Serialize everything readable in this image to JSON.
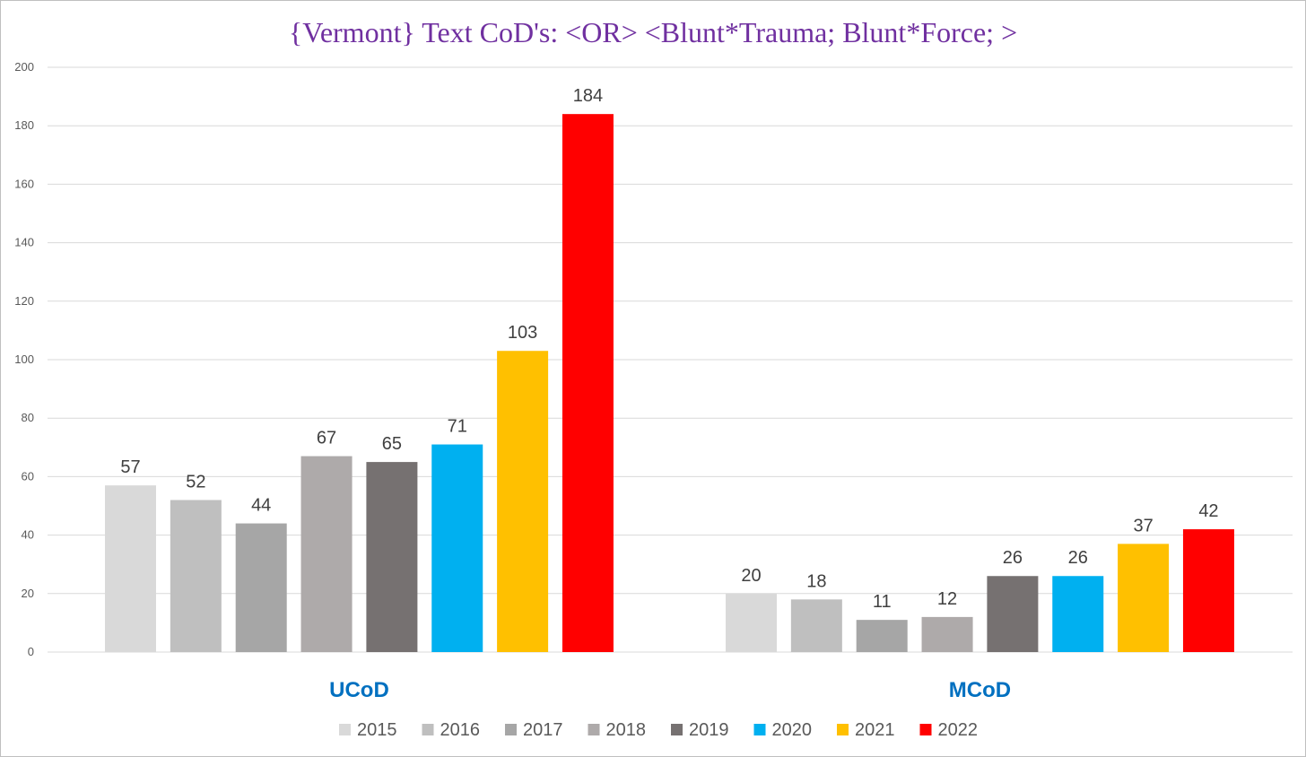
{
  "chart_data": {
    "type": "bar",
    "title": "{Vermont}   Text CoD's: <OR> <Blunt*Trauma; Blunt*Force; >",
    "xlabel": "",
    "ylabel": "",
    "ylim": [
      0,
      200
    ],
    "yticks": [
      0,
      20,
      40,
      60,
      80,
      100,
      120,
      140,
      160,
      180,
      200
    ],
    "grid": true,
    "legend_position": "bottom",
    "categories": [
      "UCoD",
      "MCoD"
    ],
    "series": [
      {
        "name": "2015",
        "color": "#d9d9d9",
        "values": [
          57,
          20
        ]
      },
      {
        "name": "2016",
        "color": "#bfbfbf",
        "values": [
          52,
          18
        ]
      },
      {
        "name": "2017",
        "color": "#a6a6a6",
        "values": [
          44,
          11
        ]
      },
      {
        "name": "2018",
        "color": "#aeaaaa",
        "values": [
          67,
          12
        ]
      },
      {
        "name": "2019",
        "color": "#767171",
        "values": [
          65,
          26
        ]
      },
      {
        "name": "2020",
        "color": "#00b0f0",
        "values": [
          71,
          26
        ]
      },
      {
        "name": "2021",
        "color": "#ffc000",
        "values": [
          103,
          37
        ]
      },
      {
        "name": "2022",
        "color": "#ff0000",
        "values": [
          184,
          42
        ]
      }
    ]
  }
}
